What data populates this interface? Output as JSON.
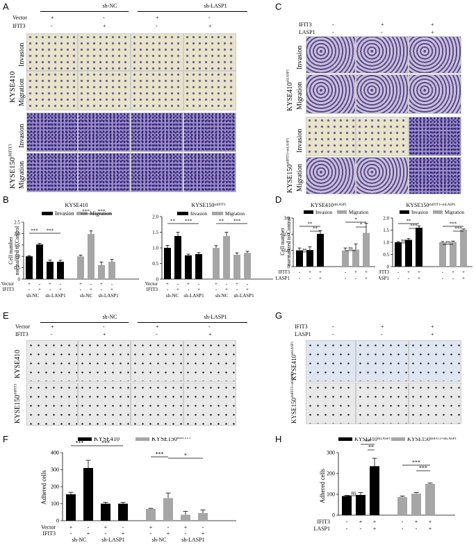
{
  "panels": {
    "A": "A",
    "B": "B",
    "C": "C",
    "D": "D",
    "E": "E",
    "F": "F",
    "G": "G",
    "H": "H"
  },
  "panelA": {
    "groups": [
      "sh-NC",
      "sh-LASP1"
    ],
    "row_labels": [
      "Vector",
      "IFIT3"
    ],
    "vector_signs": [
      "+",
      "-",
      "+",
      "-"
    ],
    "ifit3_signs": [
      "-",
      "+",
      "-",
      "+"
    ],
    "cell_lines": [
      "KYSE410",
      "KYSE150"
    ],
    "cell_sup": [
      "",
      "shIFIT3"
    ],
    "assays": [
      "Invasion",
      "Migration"
    ]
  },
  "panelC": {
    "row_labels": [
      "IFIT3",
      "LASP1"
    ],
    "ifit3_signs": [
      "-",
      "+",
      "+"
    ],
    "lasp1_signs": [
      "-",
      "-",
      "+"
    ],
    "cell_lines": [
      "KYSE410",
      "KYSE150"
    ],
    "cell_sup": [
      "shLASP1",
      "shIFIT3+shLASP1"
    ],
    "assays": [
      "Invasion",
      "Migration"
    ]
  },
  "panelE": {
    "groups": [
      "sh-NC",
      "sh-LASP1"
    ],
    "row_labels": [
      "Vector",
      "IFIT3"
    ],
    "vector_signs": [
      "+",
      "-",
      "+",
      "-"
    ],
    "ifit3_signs": [
      "-",
      "+",
      "-",
      "+"
    ],
    "cell_lines": [
      "KYSE410",
      "KYSE150"
    ],
    "cell_sup": [
      "",
      "shIFIT3"
    ]
  },
  "panelG": {
    "row_labels": [
      "IFIT3",
      "LASP1"
    ],
    "ifit3_signs": [
      "-",
      "+",
      "+"
    ],
    "lasp1_signs": [
      "-",
      "-",
      "+"
    ],
    "cell_lines": [
      "KYSE410",
      "KYSE150"
    ],
    "cell_sup": [
      "shLASP1",
      "shIFIT3+shLASP1"
    ]
  },
  "chart_data": [
    {
      "id": "B-left",
      "type": "bar",
      "title": "KYSE410",
      "ylabel": "Cell number normalized to Control",
      "ylim": [
        0,
        2.5
      ],
      "yticks": [
        0,
        0.5,
        1.0,
        1.5,
        2.0,
        2.5
      ],
      "series": [
        {
          "name": "Invasion",
          "color": "#000000",
          "values": [
            1.0,
            1.52,
            0.76,
            0.76
          ],
          "errors": [
            0.03,
            0.05,
            0.08,
            0.07
          ]
        },
        {
          "name": "Migration",
          "color": "#a6a6a6",
          "values": [
            1.0,
            1.98,
            0.62,
            0.76
          ],
          "errors": [
            0.05,
            0.14,
            0.13,
            0.11
          ]
        }
      ],
      "sig": [
        "***",
        "***",
        "***",
        "***"
      ],
      "vector_signs": [
        "+",
        "-",
        "+",
        "-",
        "+",
        "-",
        "+",
        "-"
      ],
      "ifit3_signs": [
        "-",
        "+",
        "-",
        "+",
        "-",
        "+",
        "-",
        "+"
      ],
      "groups": [
        "sh-NC",
        "sh-LASP1",
        "sh-NC",
        "sh-LASP1"
      ]
    },
    {
      "id": "B-right",
      "type": "bar",
      "title": "KYSE150",
      "title_sup": "shIFIT3",
      "ylim": [
        0,
        2.0
      ],
      "yticks": [
        0,
        0.5,
        1.0,
        1.5,
        2.0
      ],
      "series": [
        {
          "name": "Invasion",
          "color": "#000000",
          "values": [
            1.0,
            1.38,
            0.76,
            0.8
          ],
          "errors": [
            0.08,
            0.12,
            0.04,
            0.05
          ]
        },
        {
          "name": "Migration",
          "color": "#a6a6a6",
          "values": [
            1.0,
            1.38,
            0.78,
            0.84
          ],
          "errors": [
            0.07,
            0.12,
            0.06,
            0.05
          ]
        }
      ],
      "sig": [
        "**",
        "***",
        "**",
        "***"
      ],
      "vector_signs": [
        "+",
        "-",
        "+",
        "-",
        "+",
        "-",
        "+",
        "-"
      ],
      "ifit3_signs": [
        "-",
        "+",
        "-",
        "+",
        "-",
        "+",
        "-",
        "+"
      ],
      "groups": [
        "sh-NC",
        "sh-LASP1",
        "sh-NC",
        "sh-LASP1"
      ]
    },
    {
      "id": "D-left",
      "type": "bar",
      "title": "KYSE410",
      "title_sup": "shLASP1",
      "ylabel": "Cell number normalized to Control",
      "ylim": [
        0,
        3.0
      ],
      "yticks": [
        0,
        1.0,
        2.0,
        3.0
      ],
      "series": [
        {
          "name": "Invasion",
          "color": "#000000",
          "values": [
            1.0,
            1.02,
            2.02
          ],
          "errors": [
            0.15,
            0.2,
            0.2
          ]
        },
        {
          "name": "Migration",
          "color": "#a6a6a6",
          "values": [
            1.0,
            1.05,
            2.08
          ],
          "errors": [
            0.15,
            0.35,
            0.6
          ]
        }
      ],
      "sig": [
        "ns",
        "**",
        "**",
        "ns",
        "*",
        "*"
      ],
      "ifit3_signs": [
        "-",
        "+",
        "+",
        "-",
        "+",
        "+"
      ],
      "lasp1_signs": [
        "-",
        "-",
        "+",
        "-",
        "-",
        "+"
      ]
    },
    {
      "id": "D-right",
      "type": "bar",
      "title": "KYSE150",
      "title_sup": "shIFIT3+shLASP1",
      "ylim": [
        0,
        2.0
      ],
      "yticks": [
        0,
        0.5,
        1.0,
        1.5,
        2.0
      ],
      "series": [
        {
          "name": "Invasion",
          "color": "#000000",
          "values": [
            1.0,
            1.1,
            1.6
          ],
          "errors": [
            0.03,
            0.05,
            0.08
          ]
        },
        {
          "name": "Migration",
          "color": "#a6a6a6",
          "values": [
            1.0,
            1.02,
            1.52
          ],
          "errors": [
            0.03,
            0.03,
            0.03
          ]
        }
      ],
      "sig": [
        "ns",
        "**",
        "***",
        "ns",
        "***",
        "***"
      ],
      "ifit3_signs": [
        "-",
        "+",
        "+",
        "-",
        "+",
        "+"
      ],
      "lasp1_signs": [
        "-",
        "-",
        "+",
        "-",
        "-",
        "+"
      ]
    },
    {
      "id": "F",
      "type": "bar",
      "ylabel": "Adhered cells",
      "ylim": [
        0,
        400
      ],
      "yticks": [
        0,
        100,
        200,
        300,
        400
      ],
      "series": [
        {
          "name": "KYSE410",
          "color": "#000000",
          "values": [
            155,
            310,
            100,
            100
          ],
          "errors": [
            12,
            45,
            8,
            8
          ]
        },
        {
          "name": "KYSE150",
          "name_sup": "shIFIT3",
          "color": "#a6a6a6",
          "values": [
            70,
            133,
            35,
            45
          ],
          "errors": [
            3,
            30,
            20,
            18
          ]
        }
      ],
      "sig": [
        "***",
        "***",
        "***",
        "*",
        "**"
      ],
      "vector_signs": [
        "+",
        "-",
        "+",
        "-",
        "+",
        "-",
        "+",
        "-"
      ],
      "ifit3_signs": [
        "-",
        "+",
        "-",
        "+",
        "-",
        "+",
        "-",
        "+"
      ],
      "groups": [
        "sh-NC",
        "sh-LASP1",
        "sh-NC",
        "sh-LASP1"
      ]
    },
    {
      "id": "H",
      "type": "bar",
      "ylabel": "Adhered cells",
      "ylim": [
        0,
        300
      ],
      "yticks": [
        0,
        100,
        200,
        300
      ],
      "series": [
        {
          "name": "KYSE410",
          "name_sup": "shLASP1",
          "color": "#000000",
          "values": [
            92,
            97,
            235
          ],
          "errors": [
            3,
            12,
            38
          ]
        },
        {
          "name": "KYSE150",
          "name_sup": "shIFIT3+shLASP1",
          "color": "#a6a6a6",
          "values": [
            87,
            103,
            150
          ],
          "errors": [
            5,
            5,
            4
          ]
        }
      ],
      "sig": [
        "ns",
        "**",
        "**",
        "***",
        "***"
      ],
      "ifit3_signs": [
        "-",
        "+",
        "+",
        "-",
        "+",
        "+"
      ],
      "lasp1_signs": [
        "-",
        "-",
        "+",
        "-",
        "-",
        "+"
      ]
    }
  ]
}
